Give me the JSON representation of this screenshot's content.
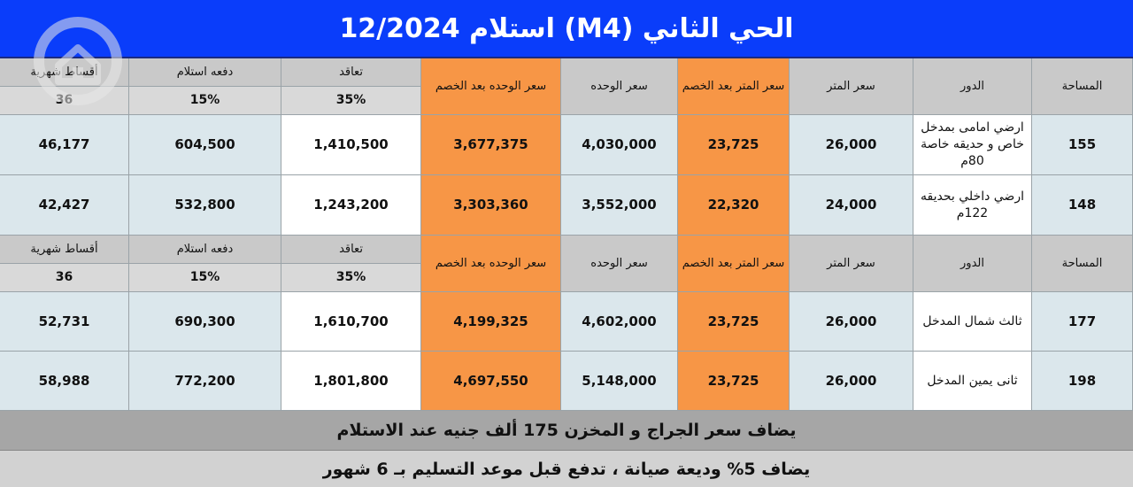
{
  "title": "الحي الثاني (M4)  استلام 12/2024",
  "headers": {
    "area": "المساحة",
    "floor": "الدور",
    "meter_price": "سعر المتر",
    "meter_price_discount": "سعر المتر بعد الخصم",
    "unit_price": "سعر الوحده",
    "unit_price_discount": "سعر الوحده بعد الخصم",
    "contract": "تعاقد",
    "delivery_payment": "دفعه استلام",
    "installments": "أقساط شهرية"
  },
  "headers_top_installments": "أقساط شهرية",
  "terms": {
    "contract": "35%",
    "delivery_payment": "15%",
    "installments": "36"
  },
  "rows": [
    {
      "area": "155",
      "floor": "ارضي امامى بمدخل خاص و حديقه خاصة 80م",
      "meter_price": "26,000",
      "meter_price_discount": "23,725",
      "unit_price": "4,030,000",
      "unit_price_discount": "3,677,375",
      "contract": "1,410,500",
      "delivery_payment": "604,500",
      "installment": "46,177"
    },
    {
      "area": "148",
      "floor": "ارضي داخلي بحديقه 122م",
      "meter_price": "24,000",
      "meter_price_discount": "22,320",
      "unit_price": "3,552,000",
      "unit_price_discount": "3,303,360",
      "contract": "1,243,200",
      "delivery_payment": "532,800",
      "installment": "42,427"
    },
    {
      "area": "177",
      "floor": "ثالث شمال المدخل",
      "meter_price": "26,000",
      "meter_price_discount": "23,725",
      "unit_price": "4,602,000",
      "unit_price_discount": "4,199,325",
      "contract": "1,610,700",
      "delivery_payment": "690,300",
      "installment": "52,731"
    },
    {
      "area": "198",
      "floor": "ثانى يمين المدخل",
      "meter_price": "26,000",
      "meter_price_discount": "23,725",
      "unit_price": "5,148,000",
      "unit_price_discount": "4,697,550",
      "contract": "1,801,800",
      "delivery_payment": "772,200",
      "installment": "58,988"
    }
  ],
  "notes": {
    "garage": "يضاف سعر الجراج و المخزن 175 ألف جنيه عند الاستلام",
    "maintenance": "يضاف 5% وديعة صيانة ، تدفع قبل موعد التسليم بـ 6 شهور"
  },
  "colors": {
    "title_bg": "#0a3dfa",
    "discount_cols": "#f79646",
    "data_bg": "#dbe7ec",
    "header_bg": "#c9c9c9"
  },
  "watermark_icon": "house-logo-icon"
}
